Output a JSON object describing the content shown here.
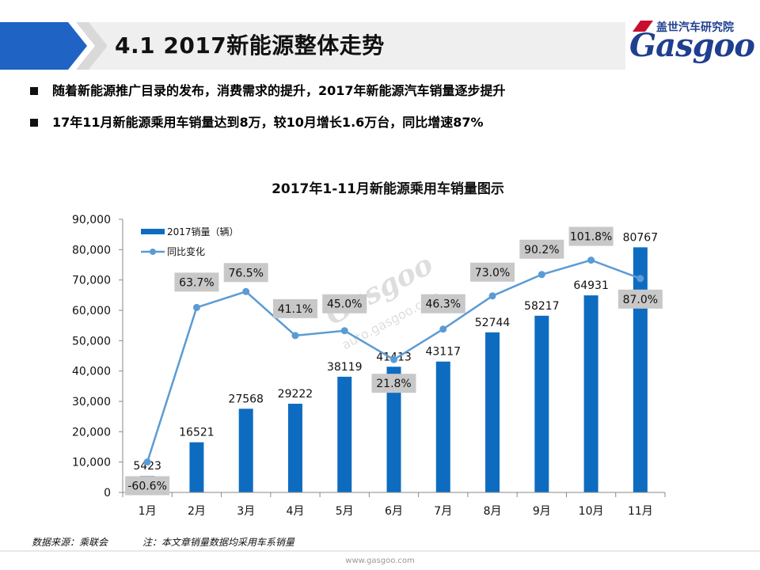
{
  "header": {
    "title": "4.1  2017新能源整体走势",
    "logo_cn": "盖世汽车研究院",
    "logo_en": "Gasgoo"
  },
  "bullets": [
    "随着新能源推广目录的发布，消费需求的提升，2017年新能源汽车销量逐步提升",
    "17年11月新能源乘用车销量达到8万，较10月增长1.6万台，同比增速87%"
  ],
  "colors": {
    "banner_blue": "#1f63c4",
    "bar_blue": "#0e6cc0",
    "line_blue": "#5b9bd5",
    "label_bg": "#c8c8c8"
  },
  "chart_data": {
    "type": "bar",
    "title": "2017年1-11月新能源乘用车销量图示",
    "categories": [
      "1月",
      "2月",
      "3月",
      "4月",
      "5月",
      "6月",
      "7月",
      "8月",
      "9月",
      "10月",
      "11月"
    ],
    "series": [
      {
        "name": "2017销量（辆）",
        "type": "bar",
        "axis": "left",
        "values": [
          5423,
          16521,
          27568,
          29222,
          38119,
          41413,
          43117,
          52744,
          58217,
          64931,
          80767
        ],
        "labels": [
          "5423",
          "16521",
          "27568",
          "29222",
          "38119",
          "41413",
          "43117",
          "52744",
          "58217",
          "64931",
          "80767"
        ]
      },
      {
        "name": "同比变化",
        "type": "line",
        "axis": "right",
        "values": [
          -60.6,
          63.7,
          76.5,
          41.1,
          45.0,
          21.8,
          46.3,
          73.0,
          90.2,
          101.8,
          87.0
        ],
        "labels": [
          "-60.6%",
          "63.7%",
          "76.5%",
          "41.1%",
          "45.0%",
          "21.8%",
          "46.3%",
          "73.0%",
          "90.2%",
          "101.8%",
          "87.0%"
        ]
      }
    ],
    "y_ticks": [
      "0",
      "10,000",
      "20,000",
      "30,000",
      "40,000",
      "50,000",
      "60,000",
      "70,000",
      "80,000",
      "90,000"
    ],
    "ylim": [
      0,
      90000
    ],
    "legend_position": "top-left"
  },
  "watermark": {
    "text": "Gasgoo",
    "cn": "盖世汽车",
    "url": "auto.gasgoo.com"
  },
  "footnote": {
    "source": "数据来源：乘联会",
    "note": "注：本文章销量数据均采用车系销量"
  },
  "footer": {
    "url": "www.gasgoo.com"
  }
}
